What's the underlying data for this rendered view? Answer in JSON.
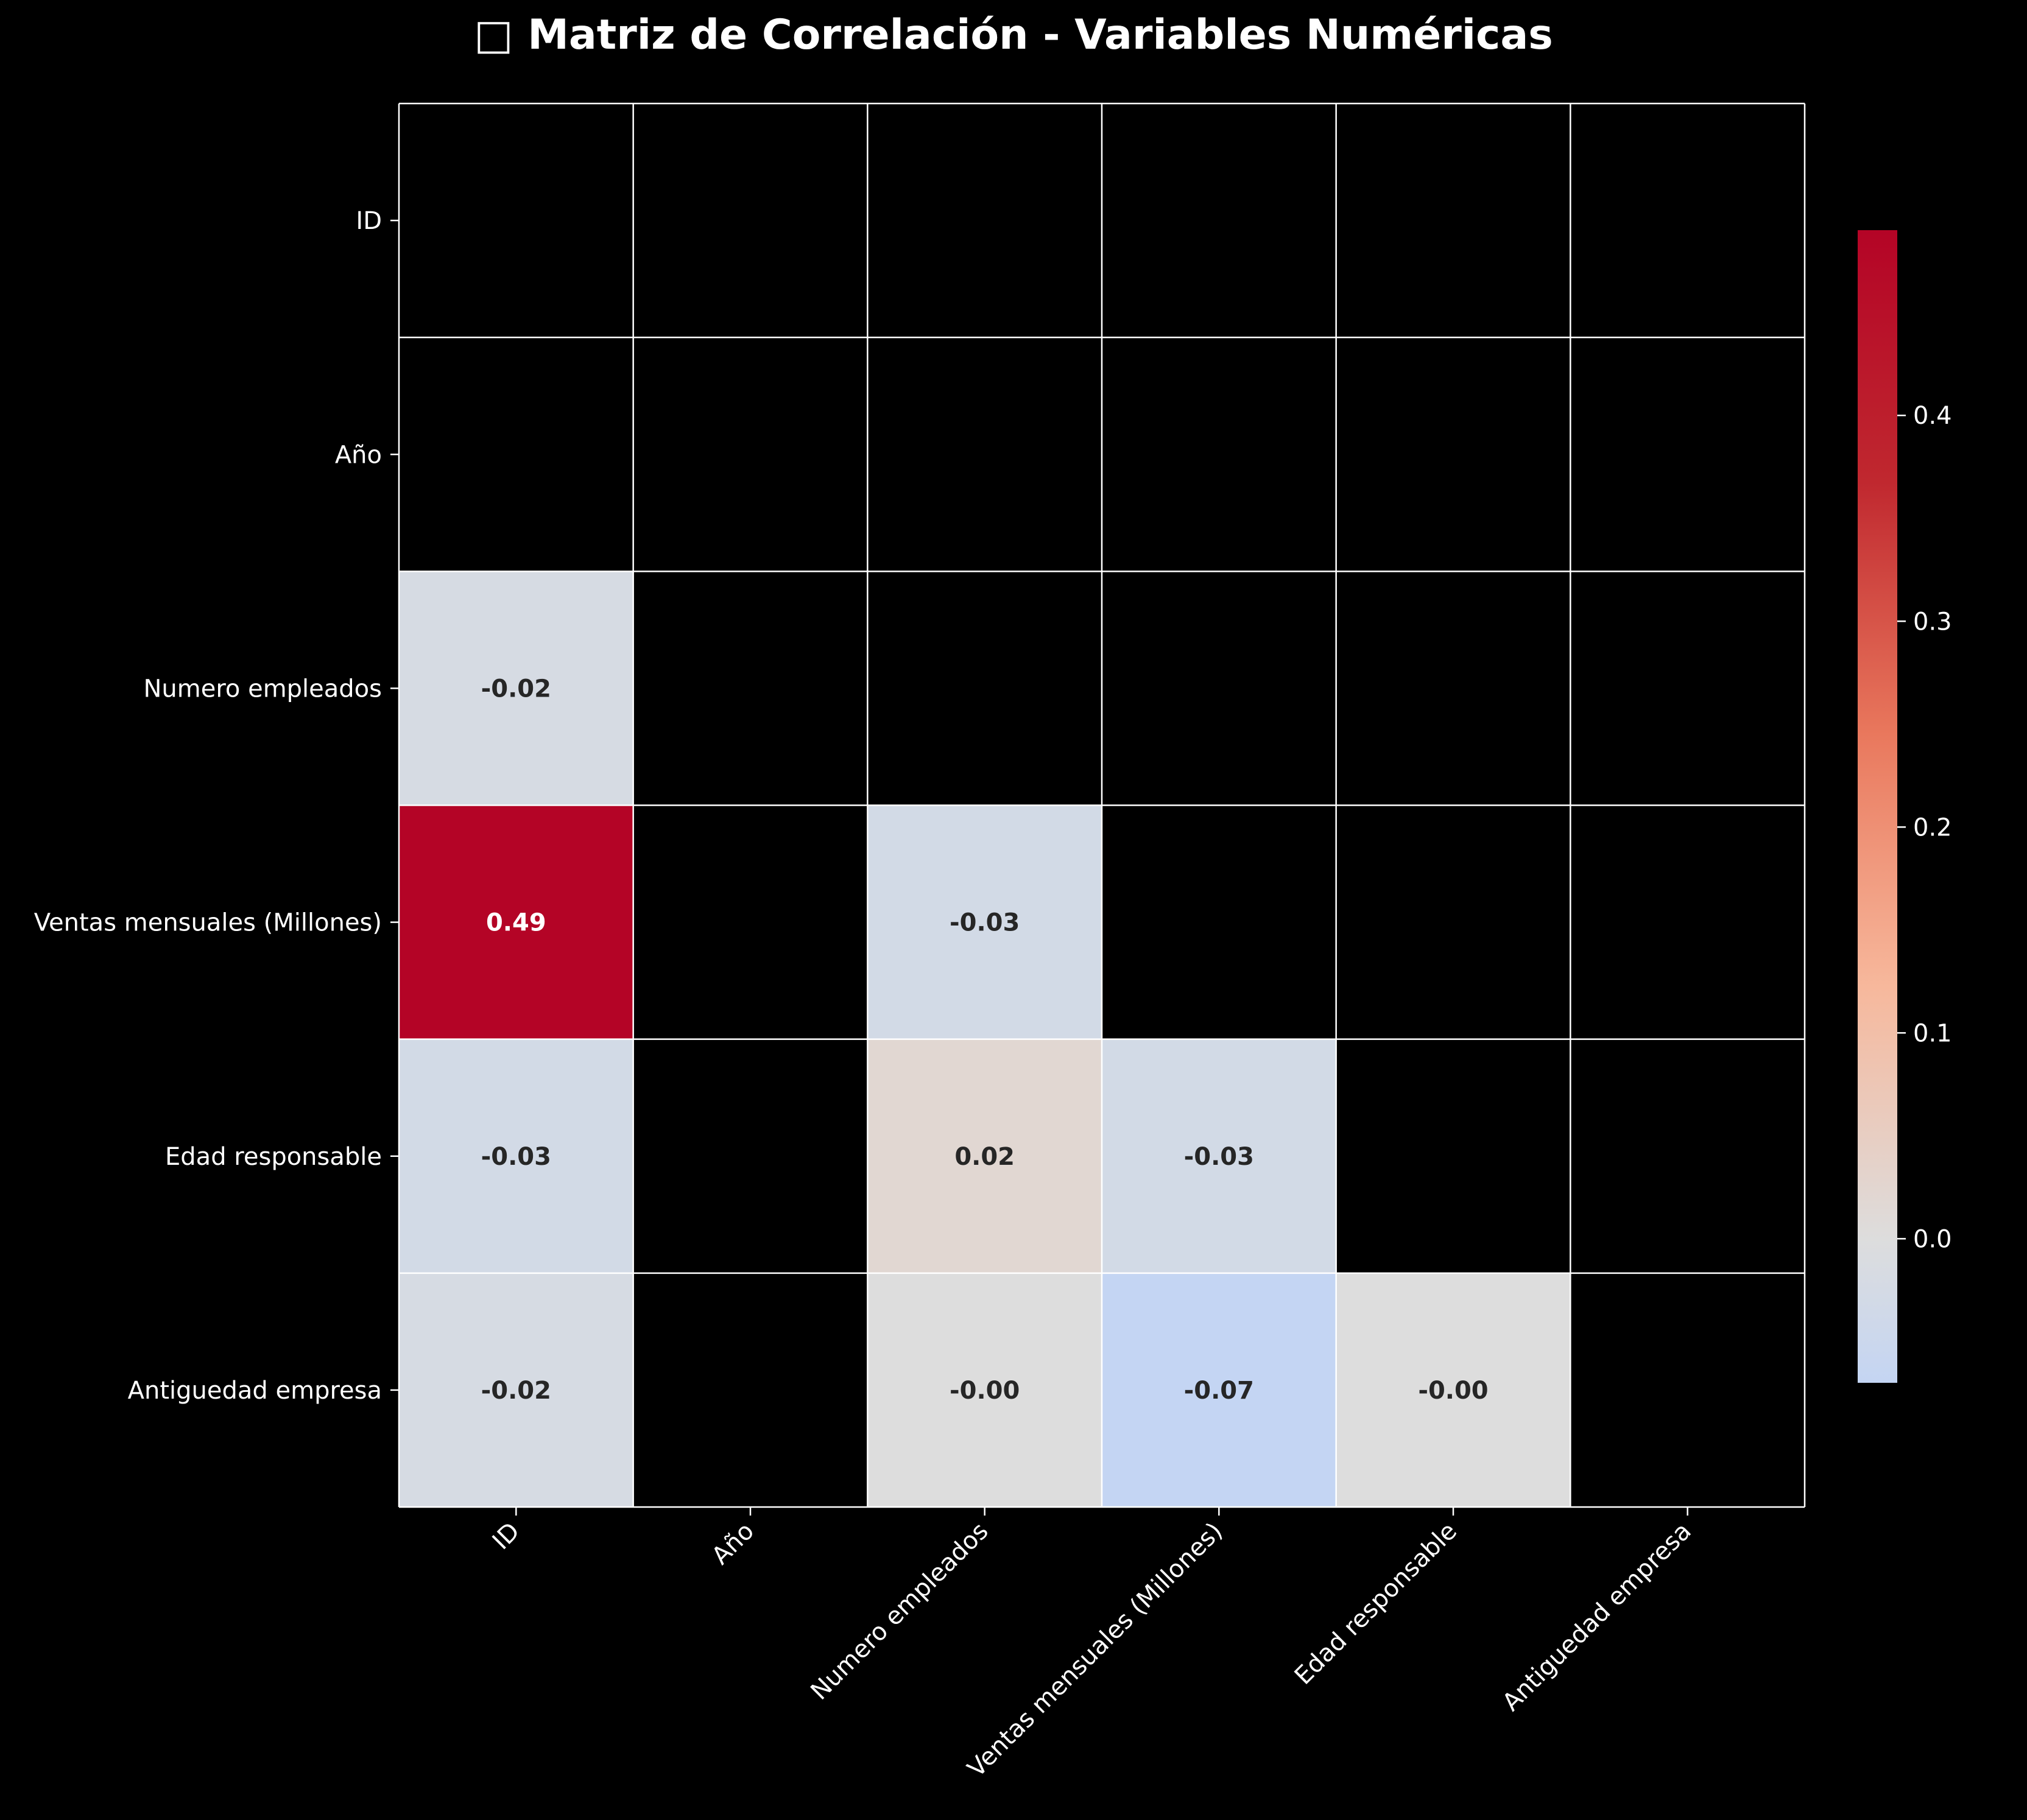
{
  "chart_data": {
    "type": "heatmap",
    "title": "□ Matriz de Correlación - Variables Numéricas",
    "variables": [
      "ID",
      "Año",
      "Numero empleados",
      "Ventas mensuales (Millones)",
      "Edad responsable",
      "Antiguedad empresa"
    ],
    "mask": "upper-triangle-and-diagonal",
    "cells": [
      {
        "row": 2,
        "col": 0,
        "value": -0.02,
        "label": "-0.02"
      },
      {
        "row": 3,
        "col": 0,
        "value": 0.49,
        "label": "0.49"
      },
      {
        "row": 3,
        "col": 2,
        "value": -0.03,
        "label": "-0.03"
      },
      {
        "row": 4,
        "col": 0,
        "value": -0.03,
        "label": "-0.03"
      },
      {
        "row": 4,
        "col": 2,
        "value": 0.02,
        "label": "0.02"
      },
      {
        "row": 4,
        "col": 3,
        "value": -0.03,
        "label": "-0.03"
      },
      {
        "row": 5,
        "col": 0,
        "value": -0.02,
        "label": "-0.02"
      },
      {
        "row": 5,
        "col": 2,
        "value": -0.0,
        "label": "-0.00"
      },
      {
        "row": 5,
        "col": 3,
        "value": -0.07,
        "label": "-0.07"
      },
      {
        "row": 5,
        "col": 4,
        "value": -0.0,
        "label": "-0.00"
      }
    ],
    "colormap": "coolwarm",
    "colorbar": {
      "range": [
        -0.07,
        0.49
      ],
      "ticks": [
        0.0,
        0.1,
        0.2,
        0.3,
        0.4
      ],
      "tick_labels": [
        "0.0",
        "0.1",
        "0.2",
        "0.3",
        "0.4"
      ],
      "colors": [
        "#c4d5f3",
        "#dddddd",
        "#f7b89c",
        "#e9785d",
        "#c0282f",
        "#b40426"
      ]
    },
    "grid": true,
    "background": "#000000",
    "gridline_color": "#ffffff"
  }
}
